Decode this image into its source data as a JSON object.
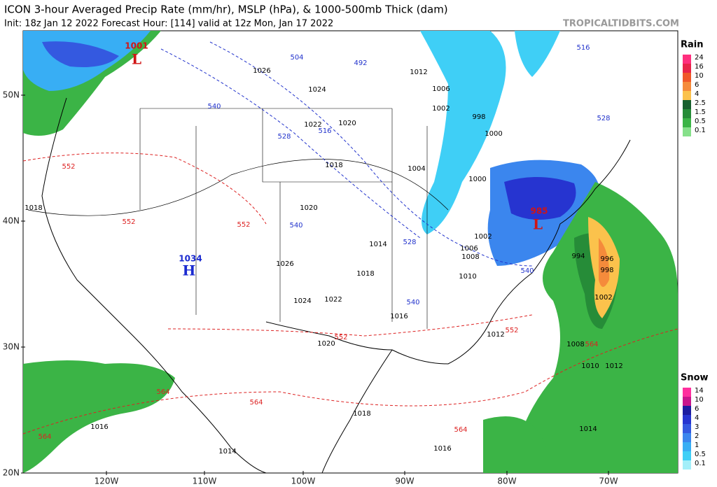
{
  "header": {
    "title": "ICON 3-hour Averaged Precip Rate (mm/hr), MSLP (hPa), & 1000-500mb Thick (dam)",
    "init": "Init: 18z Jan 12 2022   Forecast Hour: [114]   valid at 12z Mon, Jan 17 2022",
    "credit": "TROPICALTIDBITS.COM"
  },
  "axes": {
    "lat_labels": [
      "50N",
      "40N",
      "30N",
      "20N"
    ],
    "lon_labels": [
      "120W",
      "110W",
      "100W",
      "90W",
      "80W",
      "70W"
    ]
  },
  "legends": {
    "rain": {
      "title": "Rain",
      "levels": [
        {
          "label": "24",
          "color": "#ff2f7e"
        },
        {
          "label": "16",
          "color": "#e8244a"
        },
        {
          "label": "10",
          "color": "#f0582a"
        },
        {
          "label": "6",
          "color": "#f58b3b"
        },
        {
          "label": "4",
          "color": "#fbc24c"
        },
        {
          "label": "2.5",
          "color": "#17602e"
        },
        {
          "label": "1.5",
          "color": "#268c38"
        },
        {
          "label": "0.5",
          "color": "#3bb446"
        },
        {
          "label": "0.1",
          "color": "#86e08a"
        }
      ]
    },
    "snow": {
      "title": "Snow",
      "levels": [
        {
          "label": "14",
          "color": "#ff2f9e"
        },
        {
          "label": "10",
          "color": "#c8168c"
        },
        {
          "label": "6",
          "color": "#1c1ca0"
        },
        {
          "label": "4",
          "color": "#2634d0"
        },
        {
          "label": "3",
          "color": "#3459e0"
        },
        {
          "label": "2",
          "color": "#3b86ee"
        },
        {
          "label": "1",
          "color": "#38aef4"
        },
        {
          "label": "0.5",
          "color": "#3fcff6"
        },
        {
          "label": "0.1",
          "color": "#a4eff9"
        }
      ]
    }
  },
  "map_labels": {
    "centers": [
      {
        "letter": "L",
        "pressure": "1001"
      },
      {
        "letter": "L",
        "pressure": "985"
      },
      {
        "letter": "H",
        "pressure": "1034"
      }
    ],
    "isobars": [
      "1018",
      "1016",
      "1014",
      "1020",
      "1014",
      "1018",
      "1016",
      "1022",
      "1024",
      "1026",
      "1018",
      "1022",
      "1020",
      "1024",
      "1026",
      "1012",
      "1006",
      "1002",
      "998",
      "1000",
      "1004",
      "1000",
      "1002",
      "1006",
      "1008",
      "1010",
      "1012",
      "1008",
      "1010",
      "1012",
      "1014",
      "1016",
      "1018",
      "1020",
      "996",
      "998",
      "1002",
      "994"
    ],
    "thickness_cold": [
      "504",
      "492",
      "516",
      "528",
      "540",
      "528",
      "540",
      "540",
      "540",
      "516",
      "528"
    ],
    "thickness_warm": [
      "552",
      "552",
      "564",
      "564",
      "552",
      "564",
      "552",
      "564",
      "564",
      "552"
    ]
  }
}
